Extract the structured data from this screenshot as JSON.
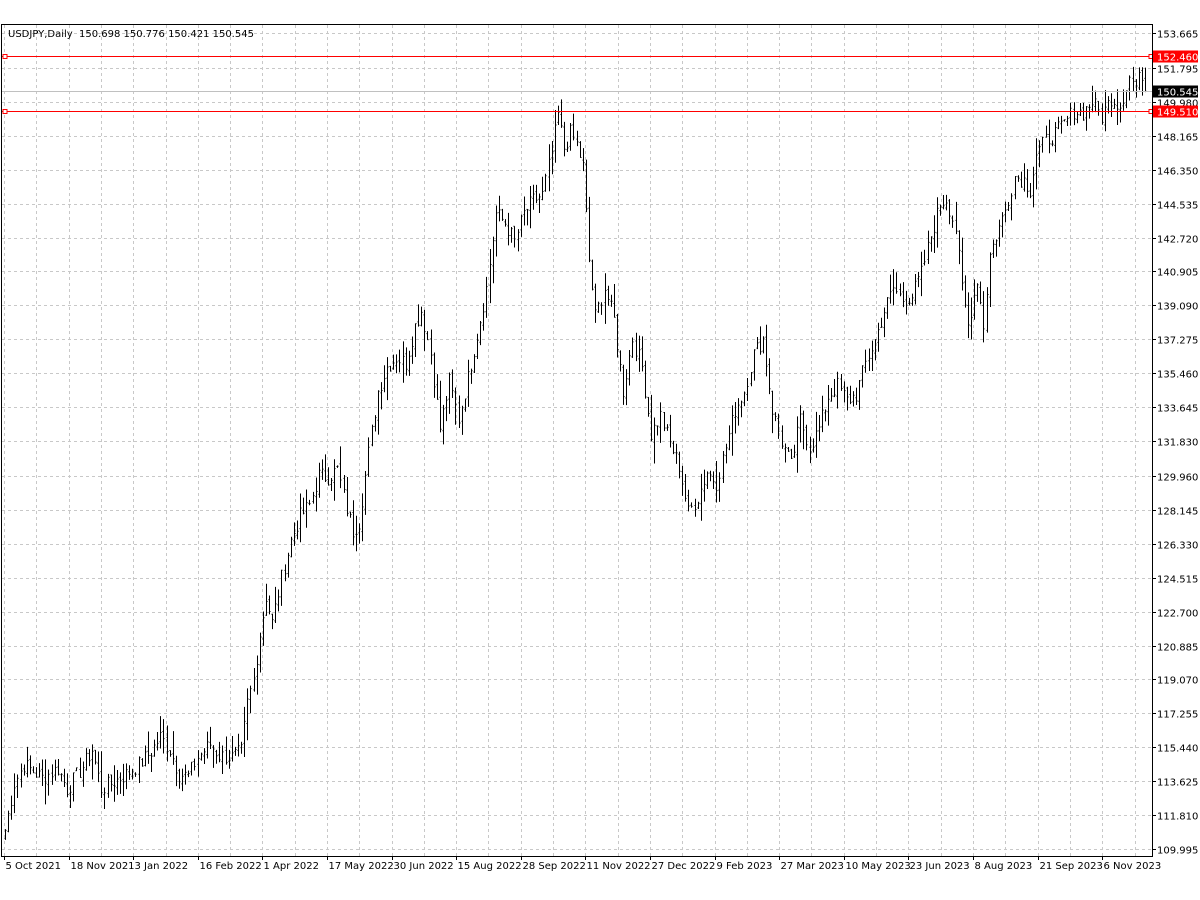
{
  "header": {
    "symbol": "USDJPY,Daily",
    "ohlc": "150.698 150.776 150.421 150.545"
  },
  "colors": {
    "background": "#ffffff",
    "grid": "#c8c8c8",
    "bars": "#000000",
    "hline": "#ff0000",
    "current_price_bg": "#000000",
    "current_price_text": "#ffffff",
    "level_label_bg": "#ff0000",
    "level_label_text": "#ffffff"
  },
  "chart_data": {
    "type": "ohlc",
    "title": "USDJPY,Daily",
    "ylim": [
      109.995,
      153.665
    ],
    "y_ticks": [
      "153.665",
      "151.795",
      "149.980",
      "148.165",
      "146.350",
      "144.535",
      "142.720",
      "140.905",
      "139.090",
      "137.275",
      "135.460",
      "133.645",
      "131.830",
      "129.960",
      "128.145",
      "126.330",
      "124.515",
      "122.700",
      "120.885",
      "119.070",
      "117.255",
      "115.440",
      "113.625",
      "111.810",
      "109.995"
    ],
    "x_ticks": [
      "5 Oct 2021",
      "18 Nov 2021",
      "3 Jan 2022",
      "16 Feb 2022",
      "1 Apr 2022",
      "17 May 2022",
      "30 Jun 2022",
      "15 Aug 2022",
      "28 Sep 2022",
      "11 Nov 2022",
      "27 Dec 2022",
      "9 Feb 2023",
      "27 Mar 2023",
      "10 May 2023",
      "23 Jun 2023",
      "8 Aug 2023",
      "21 Sep 2023",
      "6 Nov 2023"
    ],
    "current_price": "150.545",
    "horizontal_levels": [
      {
        "value": 152.46,
        "label": "152.460"
      },
      {
        "value": 149.51,
        "label": "149.510"
      }
    ],
    "series": [
      {
        "price_path": [
          [
            0,
            111.0
          ],
          [
            3,
            113.5
          ],
          [
            6,
            114.5
          ],
          [
            12,
            113.8
          ],
          [
            17,
            114.3
          ],
          [
            20,
            113.2
          ],
          [
            25,
            114.4
          ],
          [
            28,
            115.3
          ],
          [
            31,
            113.2
          ],
          [
            35,
            113.6
          ],
          [
            39,
            114.0
          ],
          [
            43,
            114.5
          ],
          [
            47,
            115.2
          ],
          [
            50,
            116.0
          ],
          [
            53,
            115.3
          ],
          [
            56,
            114.0
          ],
          [
            59,
            113.9
          ],
          [
            62,
            114.9
          ],
          [
            66,
            115.6
          ],
          [
            69,
            115.0
          ],
          [
            73,
            114.9
          ],
          [
            76,
            115.2
          ],
          [
            78,
            117.8
          ],
          [
            80,
            119.1
          ],
          [
            82,
            121.5
          ],
          [
            84,
            123.5
          ],
          [
            86,
            122.1
          ],
          [
            89,
            124.5
          ],
          [
            92,
            126.5
          ],
          [
            95,
            127.8
          ],
          [
            98,
            128.4
          ],
          [
            101,
            130.0
          ],
          [
            104,
            129.9
          ],
          [
            107,
            130.3
          ],
          [
            110,
            128.2
          ],
          [
            112,
            127.0
          ],
          [
            114,
            127.5
          ],
          [
            117,
            131.2
          ],
          [
            120,
            134.5
          ],
          [
            123,
            135.8
          ],
          [
            126,
            136.3
          ],
          [
            129,
            136.0
          ],
          [
            132,
            138.0
          ],
          [
            134,
            138.8
          ],
          [
            137,
            136.5
          ],
          [
            140,
            132.5
          ],
          [
            143,
            135.0
          ],
          [
            146,
            133.0
          ],
          [
            149,
            135.2
          ],
          [
            152,
            137.5
          ],
          [
            155,
            140.0
          ],
          [
            158,
            144.0
          ],
          [
            161,
            143.5
          ],
          [
            164,
            142.5
          ],
          [
            167,
            144.0
          ],
          [
            170,
            144.7
          ],
          [
            173,
            145.0
          ],
          [
            176,
            147.3
          ],
          [
            178,
            149.3
          ],
          [
            180,
            147.5
          ],
          [
            182,
            148.3
          ],
          [
            184,
            147.7
          ],
          [
            186,
            146.5
          ],
          [
            188,
            141.5
          ],
          [
            190,
            138.5
          ],
          [
            193,
            140.0
          ],
          [
            196,
            138.3
          ],
          [
            199,
            134.5
          ],
          [
            202,
            137.3
          ],
          [
            205,
            135.8
          ],
          [
            208,
            132.2
          ],
          [
            211,
            133.2
          ],
          [
            214,
            131.7
          ],
          [
            217,
            130.5
          ],
          [
            220,
            128.0
          ],
          [
            223,
            128.8
          ],
          [
            226,
            130.2
          ],
          [
            229,
            129.6
          ],
          [
            232,
            131.5
          ],
          [
            235,
            133.5
          ],
          [
            238,
            134.5
          ],
          [
            241,
            136.5
          ],
          [
            244,
            137.3
          ],
          [
            247,
            133.5
          ],
          [
            250,
            131.8
          ],
          [
            253,
            130.5
          ],
          [
            256,
            133.0
          ],
          [
            259,
            131.5
          ],
          [
            262,
            132.5
          ],
          [
            265,
            134.2
          ],
          [
            268,
            134.8
          ],
          [
            271,
            134.0
          ],
          [
            274,
            134.3
          ],
          [
            277,
            136.0
          ],
          [
            280,
            137.2
          ],
          [
            283,
            138.8
          ],
          [
            286,
            140.0
          ],
          [
            289,
            139.4
          ],
          [
            292,
            139.6
          ],
          [
            295,
            140.8
          ],
          [
            298,
            142.8
          ],
          [
            301,
            144.5
          ],
          [
            303,
            144.8
          ],
          [
            306,
            143.2
          ],
          [
            308,
            140.0
          ],
          [
            310,
            138.0
          ],
          [
            313,
            140.5
          ],
          [
            315,
            138.0
          ],
          [
            317,
            141.8
          ],
          [
            319,
            142.8
          ],
          [
            322,
            144.2
          ],
          [
            325,
            146.0
          ],
          [
            328,
            145.8
          ],
          [
            330,
            145.3
          ],
          [
            332,
            147.2
          ],
          [
            335,
            147.9
          ],
          [
            338,
            148.3
          ],
          [
            341,
            148.8
          ],
          [
            344,
            149.5
          ],
          [
            347,
            149.4
          ],
          [
            350,
            150.0
          ],
          [
            353,
            149.2
          ],
          [
            356,
            150.2
          ],
          [
            359,
            149.8
          ],
          [
            362,
            151.3
          ],
          [
            364,
            150.8
          ],
          [
            366,
            151.5
          ],
          [
            367,
            150.545
          ]
        ],
        "range": 1.6
      }
    ]
  }
}
